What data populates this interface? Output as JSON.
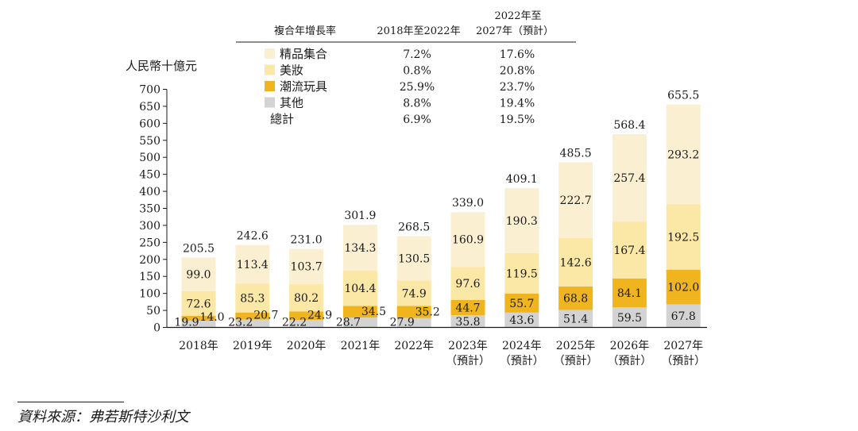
{
  "chart_data": {
    "type": "bar",
    "stacked": true,
    "ylabel": "人民幣十億元",
    "ylim": [
      0,
      700
    ],
    "yticks": [
      0,
      50,
      100,
      150,
      200,
      250,
      300,
      350,
      400,
      450,
      500,
      550,
      600,
      650,
      700
    ],
    "categories": [
      {
        "year": "2018年",
        "sub": ""
      },
      {
        "year": "2019年",
        "sub": ""
      },
      {
        "year": "2020年",
        "sub": ""
      },
      {
        "year": "2021年",
        "sub": ""
      },
      {
        "year": "2022年",
        "sub": ""
      },
      {
        "year": "2023年",
        "sub": "（預計）"
      },
      {
        "year": "2024年",
        "sub": "（預計）"
      },
      {
        "year": "2025年",
        "sub": "（預計）"
      },
      {
        "year": "2026年",
        "sub": "（預計）"
      },
      {
        "year": "2027年",
        "sub": "（預計）"
      }
    ],
    "series": [
      {
        "name": "其他",
        "color": "#d3d3d3",
        "values": [
          19.9,
          23.2,
          22.2,
          28.7,
          27.9,
          35.8,
          43.6,
          51.4,
          59.5,
          67.8
        ]
      },
      {
        "name": "潮流玩具",
        "color": "#f0b41e",
        "values": [
          14.0,
          20.7,
          24.9,
          34.5,
          35.2,
          44.7,
          55.7,
          68.8,
          84.1,
          102.0
        ]
      },
      {
        "name": "美妝",
        "color": "#fbe7a6",
        "values": [
          72.6,
          85.3,
          80.2,
          104.4,
          74.9,
          97.6,
          119.5,
          142.6,
          167.4,
          192.5
        ]
      },
      {
        "name": "精品集合",
        "color": "#fbefd2",
        "values": [
          99.0,
          113.4,
          103.7,
          134.3,
          130.5,
          160.9,
          190.3,
          222.7,
          257.4,
          293.2
        ]
      }
    ],
    "totals": [
      205.5,
      242.6,
      231.0,
      301.9,
      268.5,
      339.0,
      409.1,
      485.5,
      568.4,
      655.5
    ],
    "cagr_table": {
      "header_label": "複合年增長率",
      "col1_header": "2018年至2022年",
      "col2_header_line1": "2022年至",
      "col2_header_line2": "2027年（預計）",
      "rows": [
        {
          "name": "精品集合",
          "color": "#fbefd2",
          "c1": "7.2%",
          "c2": "17.6%"
        },
        {
          "name": "美妝",
          "color": "#fbe7a6",
          "c1": "0.8%",
          "c2": "20.8%"
        },
        {
          "name": "潮流玩具",
          "color": "#f0b41e",
          "c1": "25.9%",
          "c2": "23.7%"
        },
        {
          "name": "其他",
          "color": "#d3d3d3",
          "c1": "8.8%",
          "c2": "19.4%"
        },
        {
          "name": "總計",
          "color": null,
          "c1": "6.9%",
          "c2": "19.5%"
        }
      ]
    }
  },
  "source": "資料來源：弗若斯特沙利文"
}
